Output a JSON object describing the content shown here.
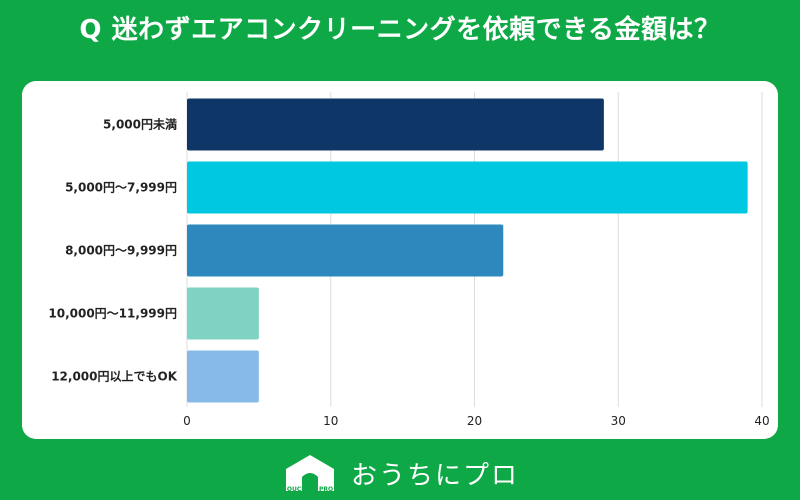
{
  "title": "Q 迷わずエアコンクリーニングを依頼できる金額は？",
  "colors": {
    "background": "#0fa847",
    "bars": [
      "#0e3768",
      "#00c8e0",
      "#2e88bd",
      "#7fd3c3",
      "#87b9e9"
    ]
  },
  "chart_data": {
    "type": "bar",
    "orientation": "horizontal",
    "categories": [
      "5,000円未満",
      "5,000円～7,999円",
      "8,000円～9,999円",
      "10,000円～11,999円",
      "12,000円以上でもOK"
    ],
    "values": [
      29,
      39,
      22,
      5,
      5
    ],
    "xlim": [
      0,
      40
    ],
    "xticks": [
      0,
      10,
      20,
      30,
      40
    ],
    "grid": true,
    "title": "Q 迷わずエアコンクリーニングを依頼できる金額は？",
    "xlabel": "",
    "ylabel": ""
  },
  "footer": {
    "logo_icon": "house-icon",
    "logo_caption": "OUCHI ni PRO",
    "brand": "おうちにプロ"
  }
}
